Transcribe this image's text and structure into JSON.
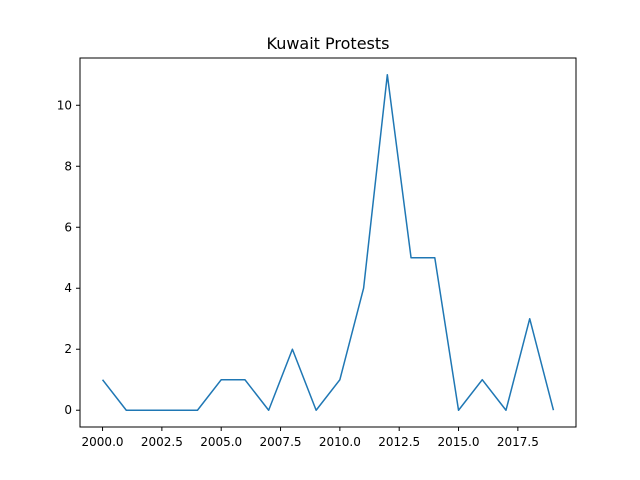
{
  "chart_data": {
    "type": "line",
    "title": "Kuwait Protests",
    "xlabel": "",
    "ylabel": "",
    "xlim": [
      1999.05,
      2019.95
    ],
    "ylim": [
      -0.55,
      11.55
    ],
    "xticks": [
      "2000.0",
      "2002.5",
      "2005.0",
      "2007.5",
      "2010.0",
      "2012.5",
      "2015.0",
      "2017.5"
    ],
    "xtick_values": [
      2000,
      2002.5,
      2005,
      2007.5,
      2010,
      2012.5,
      2015,
      2017.5
    ],
    "yticks": [
      "0",
      "2",
      "4",
      "6",
      "8",
      "10"
    ],
    "ytick_values": [
      0,
      2,
      4,
      6,
      8,
      10
    ],
    "grid": false,
    "legend": "none",
    "series": [
      {
        "color": "#1f77b4",
        "x": [
          2000,
          2001,
          2002,
          2003,
          2004,
          2005,
          2006,
          2007,
          2008,
          2009,
          2010,
          2011,
          2012,
          2013,
          2014,
          2015,
          2016,
          2017,
          2018,
          2019
        ],
        "values": [
          1,
          0,
          0,
          0,
          0,
          1,
          1,
          0,
          2,
          0,
          1,
          4,
          11,
          5,
          5,
          0,
          1,
          0,
          3,
          0
        ]
      }
    ]
  }
}
